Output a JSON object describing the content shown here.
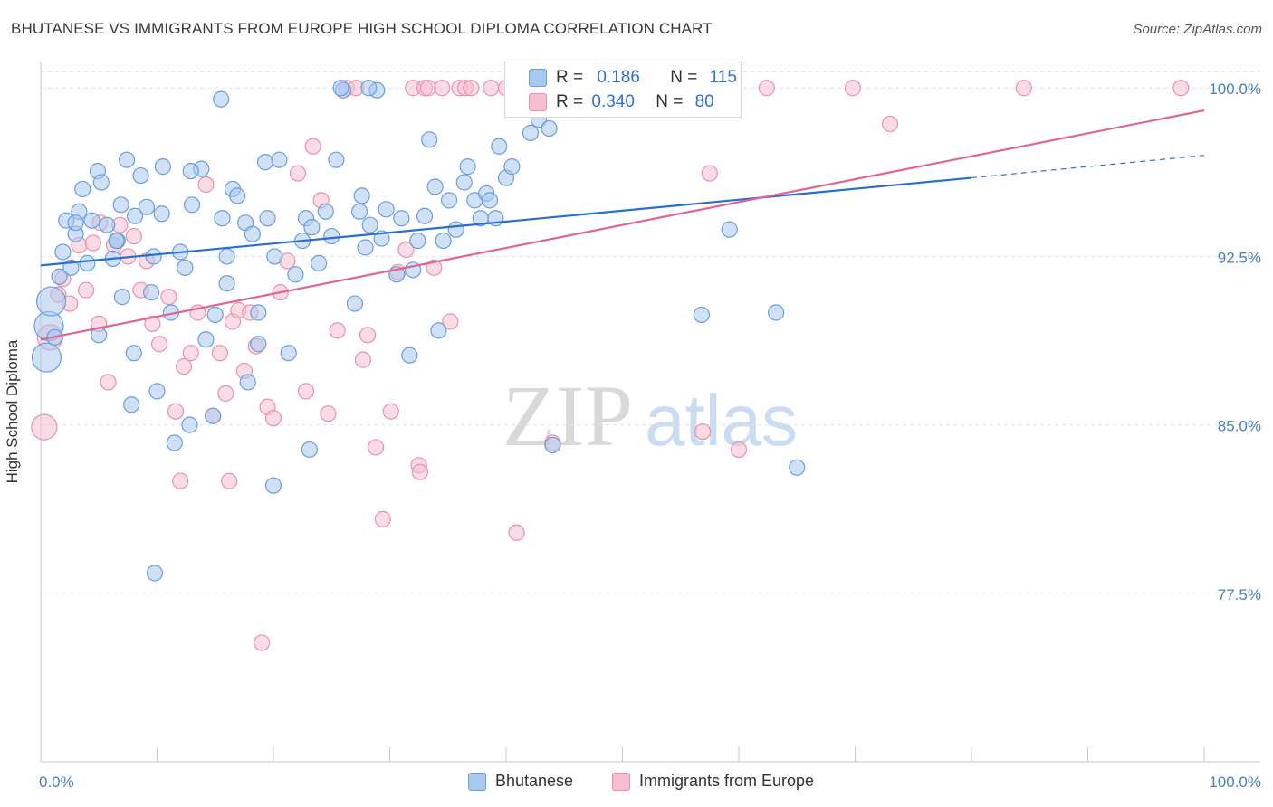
{
  "title": "BHUTANESE VS IMMIGRANTS FROM EUROPE HIGH SCHOOL DIPLOMA CORRELATION CHART",
  "source": "Source: ZipAtlas.com",
  "colors": {
    "blue_fill": "#a9c8ee",
    "blue_stroke": "#6a9fd8",
    "blue_line": "#2a6fd0",
    "pink_fill": "#f5bfcf",
    "pink_stroke": "#e892ae",
    "pink_line": "#e06592",
    "tick_text": "#4a7fc1",
    "grid": "#e3e3e3"
  },
  "watermark": {
    "zip": "ZIP",
    "atlas": "atlas"
  },
  "legend_top": {
    "rows": [
      {
        "r_label": "R =",
        "r_value": "0.186",
        "n_label": "N =",
        "n_value": "115"
      },
      {
        "r_label": "R =",
        "r_value": "0.340",
        "n_label": "N =",
        "n_value": "80"
      }
    ]
  },
  "chart_data": {
    "type": "scatter",
    "title": "BHUTANESE VS IMMIGRANTS FROM EUROPE HIGH SCHOOL DIPLOMA CORRELATION CHART",
    "xlabel": "",
    "ylabel": "High School Diploma",
    "xlim": [
      0,
      100
    ],
    "ylim": [
      70.0,
      101.5
    ],
    "x_tick_labels": [
      "0.0%",
      "100.0%"
    ],
    "y_ticks": [
      77.5,
      85.0,
      92.5,
      100.0
    ],
    "y_tick_labels": [
      "77.5%",
      "85.0%",
      "92.5%",
      "100.0%"
    ],
    "grid": true,
    "legend_position": "bottom",
    "series": [
      {
        "name": "Bhutanese",
        "color": "#a9c8ee",
        "trend": {
          "x": [
            0,
            80
          ],
          "y": [
            92.1,
            96.0
          ],
          "dashed_to": [
            100,
            97.0
          ]
        },
        "points": [
          [
            0.5,
            88.0
          ],
          [
            0.7,
            89.4
          ],
          [
            0.9,
            90.5
          ],
          [
            1.2,
            88.9
          ],
          [
            1.6,
            91.6
          ],
          [
            1.9,
            92.7
          ],
          [
            2.2,
            94.1
          ],
          [
            2.6,
            92.0
          ],
          [
            3.0,
            93.5
          ],
          [
            3.3,
            94.5
          ],
          [
            3.6,
            95.5
          ],
          [
            4.0,
            92.2
          ],
          [
            4.4,
            94.1
          ],
          [
            4.9,
            96.3
          ],
          [
            5.2,
            95.8
          ],
          [
            5.7,
            93.9
          ],
          [
            6.2,
            92.4
          ],
          [
            6.6,
            93.2
          ],
          [
            7.4,
            96.8
          ],
          [
            8.1,
            94.3
          ],
          [
            8.6,
            96.1
          ],
          [
            9.1,
            94.7
          ],
          [
            9.7,
            92.5
          ],
          [
            10.5,
            96.5
          ],
          [
            10.4,
            94.4
          ],
          [
            11.2,
            90.0
          ],
          [
            12.0,
            92.7
          ],
          [
            12.4,
            92.0
          ],
          [
            13.0,
            94.8
          ],
          [
            13.8,
            96.4
          ],
          [
            14.2,
            88.8
          ],
          [
            15.0,
            89.9
          ],
          [
            15.6,
            94.2
          ],
          [
            16.0,
            91.3
          ],
          [
            16.5,
            95.5
          ],
          [
            16.9,
            95.2
          ],
          [
            17.6,
            94.0
          ],
          [
            18.2,
            93.5
          ],
          [
            18.7,
            88.6
          ],
          [
            19.5,
            94.2
          ],
          [
            20.1,
            92.5
          ],
          [
            20.5,
            96.8
          ],
          [
            21.3,
            88.2
          ],
          [
            21.9,
            91.7
          ],
          [
            22.5,
            93.2
          ],
          [
            22.8,
            94.2
          ],
          [
            23.3,
            93.8
          ],
          [
            23.9,
            92.2
          ],
          [
            24.5,
            94.5
          ],
          [
            25.0,
            93.4
          ],
          [
            25.4,
            96.8
          ],
          [
            26.0,
            99.9
          ],
          [
            27.0,
            90.4
          ],
          [
            27.4,
            94.5
          ],
          [
            27.9,
            92.9
          ],
          [
            28.3,
            93.9
          ],
          [
            28.9,
            99.9
          ],
          [
            29.7,
            94.6
          ],
          [
            30.6,
            91.7
          ],
          [
            31.0,
            94.2
          ],
          [
            31.7,
            88.1
          ],
          [
            32.0,
            91.9
          ],
          [
            32.4,
            93.2
          ],
          [
            33.0,
            94.3
          ],
          [
            33.4,
            97.7
          ],
          [
            33.9,
            95.6
          ],
          [
            34.2,
            89.2
          ],
          [
            34.6,
            93.2
          ],
          [
            35.1,
            95.0
          ],
          [
            35.7,
            93.7
          ],
          [
            36.4,
            95.8
          ],
          [
            36.7,
            96.5
          ],
          [
            37.3,
            95.0
          ],
          [
            37.8,
            94.2
          ],
          [
            38.3,
            95.3
          ],
          [
            38.6,
            95.0
          ],
          [
            39.1,
            94.2
          ],
          [
            39.4,
            97.4
          ],
          [
            40.0,
            96.0
          ],
          [
            40.5,
            96.5
          ],
          [
            41.3,
            99.7
          ],
          [
            42.1,
            98.0
          ],
          [
            42.8,
            98.6
          ],
          [
            43.7,
            98.2
          ],
          [
            45.0,
            99.5
          ],
          [
            56.8,
            89.9
          ],
          [
            59.2,
            93.7
          ],
          [
            63.2,
            90.0
          ],
          [
            65.0,
            83.1
          ],
          [
            44.0,
            84.1
          ],
          [
            6.5,
            93.2
          ],
          [
            7.0,
            90.7
          ],
          [
            7.8,
            85.9
          ],
          [
            9.5,
            90.9
          ],
          [
            10.0,
            86.5
          ],
          [
            11.5,
            84.2
          ],
          [
            16.0,
            92.5
          ],
          [
            17.8,
            86.9
          ],
          [
            18.7,
            90.0
          ],
          [
            20.0,
            82.3
          ],
          [
            9.8,
            78.4
          ],
          [
            8.0,
            88.2
          ],
          [
            5.0,
            89.0
          ],
          [
            12.8,
            85.0
          ],
          [
            14.8,
            85.4
          ],
          [
            23.1,
            83.9
          ],
          [
            25.8,
            100.0
          ],
          [
            28.2,
            100.0
          ],
          [
            19.3,
            96.7
          ],
          [
            29.3,
            93.3
          ],
          [
            15.5,
            99.5
          ],
          [
            27.6,
            95.2
          ],
          [
            6.9,
            94.8
          ],
          [
            12.9,
            96.3
          ],
          [
            3.0,
            94.0
          ]
        ]
      },
      {
        "name": "Immigrants from Europe",
        "color": "#f5bfcf",
        "trend": {
          "x": [
            0,
            100
          ],
          "y": [
            88.8,
            99.0
          ]
        },
        "points": [
          [
            0.3,
            84.9
          ],
          [
            0.8,
            88.9
          ],
          [
            1.5,
            90.8
          ],
          [
            1.9,
            91.5
          ],
          [
            2.5,
            90.4
          ],
          [
            3.3,
            93.0
          ],
          [
            3.9,
            91.0
          ],
          [
            4.5,
            93.1
          ],
          [
            5.1,
            94.0
          ],
          [
            5.8,
            86.9
          ],
          [
            6.3,
            93.0
          ],
          [
            6.8,
            93.9
          ],
          [
            7.5,
            92.5
          ],
          [
            8.0,
            93.4
          ],
          [
            8.6,
            91.0
          ],
          [
            9.1,
            92.3
          ],
          [
            9.6,
            89.5
          ],
          [
            10.2,
            88.6
          ],
          [
            11.0,
            90.7
          ],
          [
            11.6,
            85.6
          ],
          [
            12.3,
            87.6
          ],
          [
            12.9,
            88.2
          ],
          [
            13.5,
            90.0
          ],
          [
            14.2,
            95.7
          ],
          [
            14.8,
            85.4
          ],
          [
            15.4,
            88.2
          ],
          [
            15.9,
            86.4
          ],
          [
            16.5,
            89.6
          ],
          [
            17.0,
            90.1
          ],
          [
            17.5,
            87.4
          ],
          [
            18.0,
            90.0
          ],
          [
            18.5,
            88.5
          ],
          [
            19.0,
            75.3
          ],
          [
            19.5,
            85.8
          ],
          [
            20.0,
            85.3
          ],
          [
            20.6,
            90.9
          ],
          [
            21.2,
            92.3
          ],
          [
            22.1,
            96.2
          ],
          [
            22.8,
            86.5
          ],
          [
            23.4,
            97.4
          ],
          [
            24.1,
            95.0
          ],
          [
            24.7,
            85.5
          ],
          [
            25.5,
            89.2
          ],
          [
            26.3,
            100.0
          ],
          [
            27.1,
            100.0
          ],
          [
            27.7,
            87.9
          ],
          [
            28.1,
            89.0
          ],
          [
            28.8,
            84.0
          ],
          [
            29.4,
            80.8
          ],
          [
            30.1,
            85.6
          ],
          [
            30.7,
            91.8
          ],
          [
            31.4,
            92.8
          ],
          [
            32.0,
            100.0
          ],
          [
            32.5,
            83.2
          ],
          [
            33.0,
            100.0
          ],
          [
            33.3,
            100.0
          ],
          [
            33.8,
            92.0
          ],
          [
            34.5,
            100.0
          ],
          [
            35.2,
            89.6
          ],
          [
            36.0,
            100.0
          ],
          [
            36.5,
            100.0
          ],
          [
            37.0,
            100.0
          ],
          [
            38.7,
            100.0
          ],
          [
            40.0,
            100.0
          ],
          [
            40.9,
            80.2
          ],
          [
            44.0,
            84.2
          ],
          [
            50.0,
            100.0
          ],
          [
            52.0,
            100.0
          ],
          [
            56.9,
            84.7
          ],
          [
            57.5,
            96.2
          ],
          [
            60.0,
            83.9
          ],
          [
            62.4,
            100.0
          ],
          [
            69.8,
            100.0
          ],
          [
            73.0,
            98.4
          ],
          [
            84.5,
            100.0
          ],
          [
            98.0,
            100.0
          ],
          [
            5.0,
            89.5
          ],
          [
            12.0,
            82.5
          ],
          [
            16.2,
            82.5
          ],
          [
            32.6,
            82.9
          ]
        ]
      }
    ]
  },
  "legend_bottom": {
    "items": [
      {
        "label": "Bhutanese"
      },
      {
        "label": "Immigrants from Europe"
      }
    ]
  }
}
